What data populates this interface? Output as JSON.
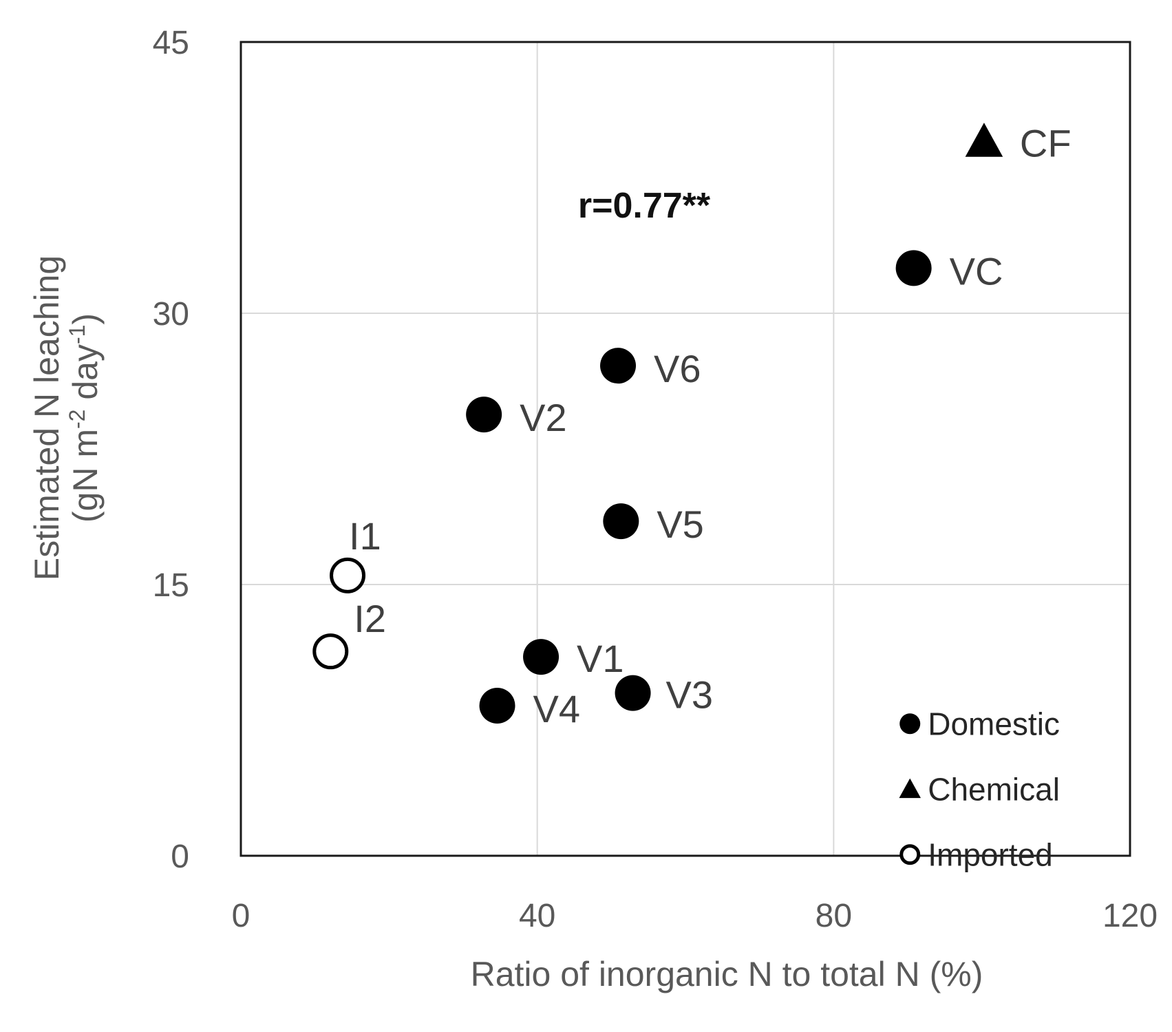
{
  "chart_data": {
    "type": "scatter",
    "xlabel": "Ratio of inorganic N to total N (%)",
    "ylabel": {
      "line1": "Estimated N leaching",
      "line2_parts": [
        "(gN m",
        "-2",
        " day",
        "-1",
        ")"
      ]
    },
    "xlim": [
      0,
      120
    ],
    "ylim": [
      0,
      45
    ],
    "xticks": [
      0,
      40,
      80,
      120
    ],
    "yticks": [
      0,
      15,
      30,
      45
    ],
    "grid": true,
    "annotation": "r=0.77**",
    "legend": [
      {
        "name": "Domestic",
        "marker": "filled-circle"
      },
      {
        "name": "Chemical",
        "marker": "filled-triangle"
      },
      {
        "name": "Imported",
        "marker": "open-circle"
      }
    ],
    "points": [
      {
        "label": "CF",
        "group": "Chemical",
        "x": 100.3,
        "y": 39.5
      },
      {
        "label": "VC",
        "group": "Domestic",
        "x": 90.8,
        "y": 32.5
      },
      {
        "label": "V6",
        "group": "Domestic",
        "x": 50.9,
        "y": 27.1
      },
      {
        "label": "V2",
        "group": "Domestic",
        "x": 32.8,
        "y": 24.4
      },
      {
        "label": "V5",
        "group": "Domestic",
        "x": 51.3,
        "y": 18.5
      },
      {
        "label": "I1",
        "group": "Imported",
        "x": 14.4,
        "y": 15.5
      },
      {
        "label": "I2",
        "group": "Imported",
        "x": 12.1,
        "y": 11.3
      },
      {
        "label": "V1",
        "group": "Domestic",
        "x": 40.5,
        "y": 11.0
      },
      {
        "label": "V3",
        "group": "Domestic",
        "x": 52.9,
        "y": 9.0
      },
      {
        "label": "V4",
        "group": "Domestic",
        "x": 34.6,
        "y": 8.3
      }
    ]
  }
}
